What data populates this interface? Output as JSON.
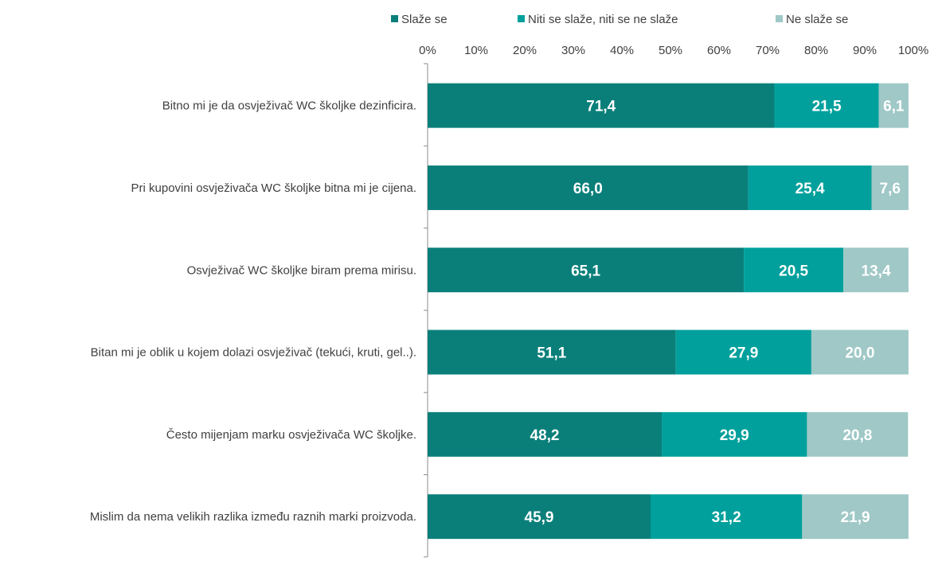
{
  "chart_data": {
    "type": "bar",
    "orientation": "horizontal",
    "stacked": true,
    "title": "",
    "xlabel": "",
    "ylabel": "",
    "xlim": [
      0,
      100
    ],
    "x_ticks": [
      "0%",
      "10%",
      "20%",
      "30%",
      "40%",
      "50%",
      "60%",
      "70%",
      "80%",
      "90%",
      "100%"
    ],
    "grid": false,
    "legend_position": "top",
    "categories": [
      "Bitno mi je da osvježivač WC školjke dezinficira.",
      "Pri kupovini osvježivača WC školjke bitna mi je cijena.",
      "Osvježivač WC školjke biram prema mirisu.",
      "Bitan mi je oblik u kojem dolazi osvježivač (tekući, kruti, gel..).",
      "Često mijenjam marku osvježivača WC školjke.",
      "Mislim da nema velikih razlika između raznih marki proizvoda."
    ],
    "series": [
      {
        "name": "Slaže se",
        "color": "#0a7f7a",
        "values": [
          71.4,
          66.0,
          65.1,
          51.1,
          48.2,
          45.9
        ],
        "labels": [
          "71,4",
          "66,0",
          "65,1",
          "51,1",
          "48,2",
          "45,9"
        ]
      },
      {
        "name": "Niti se slaže, niti se ne slaže",
        "color": "#01a09c",
        "values": [
          21.5,
          25.4,
          20.5,
          27.9,
          29.9,
          31.2
        ],
        "labels": [
          "21,5",
          "25,4",
          "20,5",
          "27,9",
          "29,9",
          "31,2"
        ]
      },
      {
        "name": "Ne slaže se",
        "color": "#9fc8c6",
        "values": [
          6.1,
          7.6,
          13.4,
          20.0,
          20.8,
          21.9
        ],
        "labels": [
          "6,1",
          "7,6",
          "13,4",
          "20,0",
          "20,8",
          "21,9"
        ]
      }
    ]
  }
}
